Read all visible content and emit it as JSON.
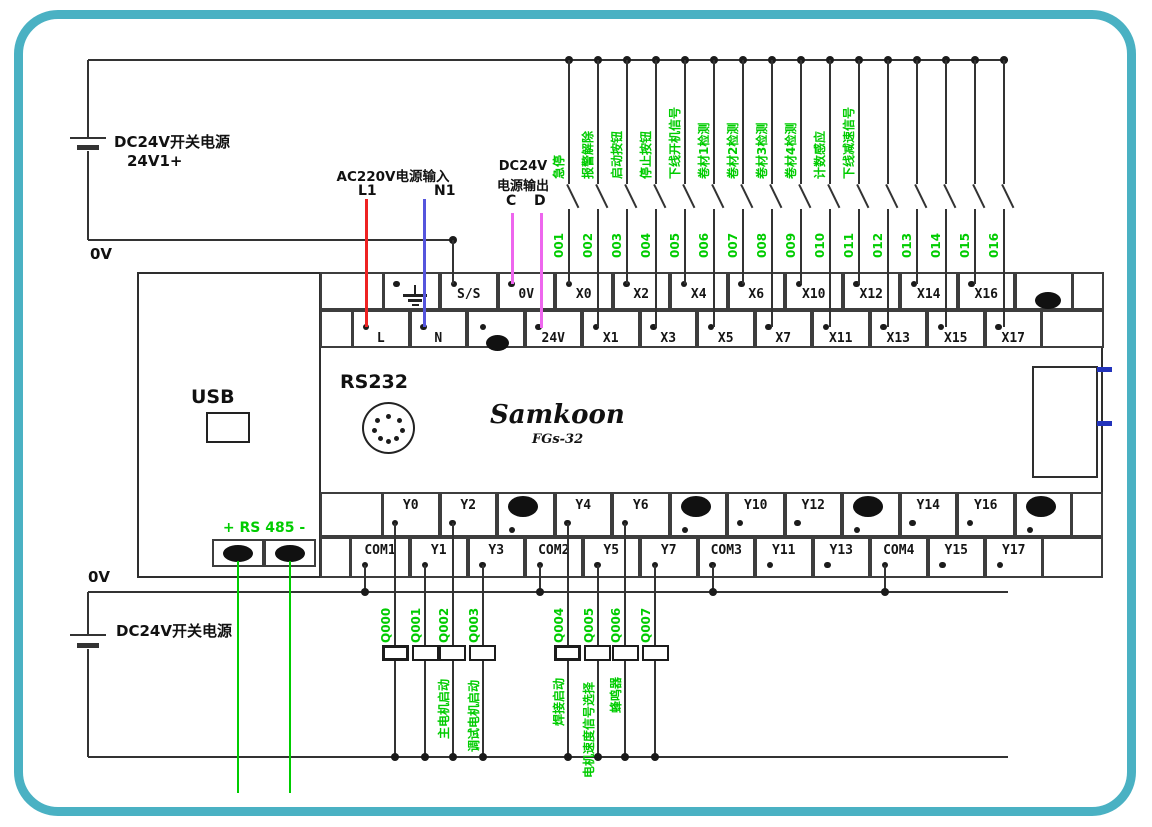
{
  "frame": {
    "border_color": "#4ab1c3"
  },
  "colors": {
    "green": "#00cc00",
    "red": "#ee2222",
    "blue": "#5555dd",
    "magenta": "#ee66ee",
    "wire": "#333333"
  },
  "annotations": {
    "supply_top": {
      "title": "DC24V开关电源",
      "sub": "24V1+"
    },
    "supply_bottom": {
      "title": "DC24V开关电源"
    },
    "ov_top": "0V",
    "ov_bottom": "0V",
    "ac_input": {
      "title": "AC220V电源输入",
      "l": "L1",
      "n": "N1"
    },
    "dc_output": {
      "line1": "DC24V",
      "line2": "电源输出",
      "c": "C",
      "d": "D"
    }
  },
  "plc": {
    "usb": "USB",
    "rs232": "RS232",
    "brand": "Samkoon",
    "model": "FGs-32",
    "rs485": "+ RS 485 -",
    "terminals": {
      "row1": [
        "earth",
        "S/S",
        "0V",
        "X0",
        "X2",
        "X4",
        "X6",
        "X10",
        "X12",
        "X14",
        "X16",
        "oval"
      ],
      "row2": [
        "L",
        "N",
        "oval",
        "24V",
        "X1",
        "X3",
        "X5",
        "X7",
        "X11",
        "X13",
        "X15",
        "X17"
      ],
      "row3": [
        "Y0",
        "Y2",
        "oval",
        "Y4",
        "Y6",
        "oval",
        "Y10",
        "Y12",
        "oval",
        "Y14",
        "Y16",
        "oval"
      ],
      "row4": [
        "COM1",
        "Y1",
        "Y3",
        "COM2",
        "Y5",
        "Y7",
        "COM3",
        "Y11",
        "Y13",
        "COM4",
        "Y15",
        "Y17"
      ]
    }
  },
  "inputs": [
    {
      "num": "001",
      "name": "急停",
      "terminal": "X0"
    },
    {
      "num": "002",
      "name": "报警解除",
      "terminal": "X1"
    },
    {
      "num": "003",
      "name": "启动按钮",
      "terminal": "X2"
    },
    {
      "num": "004",
      "name": "停止按钮",
      "terminal": "X3"
    },
    {
      "num": "005",
      "name": "下线开机信号",
      "terminal": "X4"
    },
    {
      "num": "006",
      "name": "卷材1检测",
      "terminal": "X5"
    },
    {
      "num": "007",
      "name": "卷材2检测",
      "terminal": "X6"
    },
    {
      "num": "008",
      "name": "卷材3检测",
      "terminal": "X7"
    },
    {
      "num": "009",
      "name": "卷材4检测",
      "terminal": "X10"
    },
    {
      "num": "010",
      "name": "计数感应",
      "terminal": "X11"
    },
    {
      "num": "011",
      "name": "下线减速信号",
      "terminal": "X12"
    },
    {
      "num": "012",
      "name": "",
      "terminal": "X13"
    },
    {
      "num": "013",
      "name": "",
      "terminal": "X14"
    },
    {
      "num": "014",
      "name": "",
      "terminal": "X15"
    },
    {
      "num": "015",
      "name": "",
      "terminal": "X16"
    },
    {
      "num": "016",
      "name": "",
      "terminal": "X17"
    }
  ],
  "outputs": [
    {
      "num": "Q000",
      "name": "",
      "terminal": "Y0"
    },
    {
      "num": "Q001",
      "name": "",
      "terminal": "Y1"
    },
    {
      "num": "Q002",
      "name": "主电机启动",
      "terminal": "Y2"
    },
    {
      "num": "Q003",
      "name": "调试电机启动",
      "terminal": "Y3"
    },
    {
      "num": "Q004",
      "name": "焊接启动",
      "terminal": "Y4"
    },
    {
      "num": "Q005",
      "name": "电机速度信号选择",
      "terminal": "Y5"
    },
    {
      "num": "Q006",
      "name": "蜂鸣器",
      "terminal": "Y6"
    },
    {
      "num": "Q007",
      "name": "",
      "terminal": "Y7"
    }
  ]
}
